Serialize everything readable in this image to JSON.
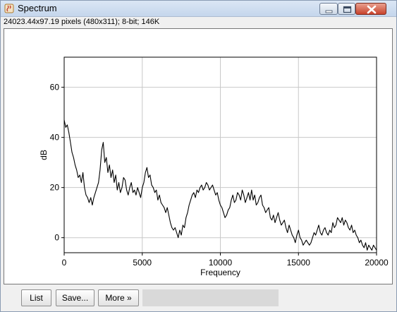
{
  "window": {
    "title": "Spectrum",
    "info": "24023.44x97.19 pixels (480x311); 8-bit; 146K"
  },
  "buttons": {
    "list": "List",
    "save": "Save...",
    "more": "More »"
  },
  "chart_data": {
    "type": "line",
    "xlabel": "Frequency",
    "ylabel": "dB",
    "xlim": [
      0,
      20000
    ],
    "ylim": [
      -6,
      72
    ],
    "x_ticks": [
      0,
      5000,
      10000,
      15000,
      20000
    ],
    "y_ticks": [
      0,
      20,
      40,
      60
    ],
    "grid": true,
    "line_color": "#000000",
    "series": [
      {
        "x": [
          0,
          100,
          200,
          300,
          400,
          500,
          600,
          700,
          800,
          900,
          1000,
          1100,
          1200,
          1300,
          1400,
          1500,
          1600,
          1700,
          1800,
          1900,
          2000,
          2100,
          2200,
          2300,
          2400,
          2500,
          2600,
          2700,
          2800,
          2900,
          3000,
          3100,
          3200,
          3300,
          3400,
          3500,
          3600,
          3700,
          3800,
          3900,
          4000,
          4100,
          4200,
          4300,
          4400,
          4500,
          4600,
          4700,
          4800,
          4900,
          5000,
          5100,
          5200,
          5300,
          5400,
          5500,
          5600,
          5700,
          5800,
          5900,
          6000,
          6100,
          6200,
          6300,
          6400,
          6500,
          6600,
          6700,
          6800,
          6900,
          7000,
          7100,
          7200,
          7300,
          7400,
          7500,
          7600,
          7700,
          7800,
          7900,
          8000,
          8100,
          8200,
          8300,
          8400,
          8500,
          8600,
          8700,
          8800,
          8900,
          9000,
          9100,
          9200,
          9300,
          9400,
          9500,
          9600,
          9700,
          9800,
          9900,
          10000,
          10100,
          10200,
          10300,
          10400,
          10500,
          10600,
          10700,
          10800,
          10900,
          11000,
          11100,
          11200,
          11300,
          11400,
          11500,
          11600,
          11700,
          11800,
          11900,
          12000,
          12100,
          12200,
          12300,
          12400,
          12500,
          12600,
          12700,
          12800,
          12900,
          13000,
          13100,
          13200,
          13300,
          13400,
          13500,
          13600,
          13700,
          13800,
          13900,
          14000,
          14100,
          14200,
          14300,
          14400,
          14500,
          14600,
          14700,
          14800,
          14900,
          15000,
          15100,
          15200,
          15300,
          15400,
          15500,
          15600,
          15700,
          15800,
          15900,
          16000,
          16100,
          16200,
          16300,
          16400,
          16500,
          16600,
          16700,
          16800,
          16900,
          17000,
          17100,
          17200,
          17300,
          17400,
          17500,
          17600,
          17700,
          17800,
          17900,
          18000,
          18100,
          18200,
          18300,
          18400,
          18500,
          18600,
          18700,
          18800,
          18900,
          19000,
          19100,
          19200,
          19300,
          19400,
          19500,
          19600,
          19700,
          19800,
          19900,
          20000
        ],
        "y": [
          47,
          44,
          45,
          42,
          38,
          34,
          32,
          29,
          27,
          24,
          25,
          22,
          26,
          20,
          17,
          16,
          14,
          16,
          13,
          16,
          18,
          20,
          22,
          27,
          35,
          38,
          30,
          32,
          26,
          29,
          24,
          27,
          22,
          25,
          19,
          22,
          18,
          20,
          24,
          23,
          19,
          17,
          20,
          22,
          18,
          19,
          17,
          20,
          18,
          16,
          20,
          22,
          26,
          28,
          24,
          25,
          21,
          20,
          18,
          19,
          15,
          17,
          14,
          13,
          12,
          10,
          12,
          9,
          6,
          4,
          3,
          4,
          2,
          0,
          3,
          1,
          5,
          4,
          8,
          10,
          13,
          15,
          17,
          18,
          16,
          19,
          18,
          20,
          21,
          19,
          20,
          22,
          21,
          19,
          20,
          21,
          19,
          17,
          18,
          15,
          13,
          12,
          10,
          8,
          9,
          11,
          12,
          15,
          17,
          14,
          15,
          18,
          17,
          15,
          19,
          17,
          14,
          16,
          18,
          15,
          19,
          15,
          17,
          13,
          14,
          16,
          17,
          13,
          12,
          10,
          11,
          12,
          8,
          7,
          9,
          6,
          8,
          10,
          7,
          5,
          6,
          7,
          4,
          2,
          5,
          3,
          1,
          0,
          -2,
          1,
          3,
          0,
          -1,
          -3,
          -2,
          -1,
          -2,
          -3,
          -2,
          0,
          2,
          1,
          3,
          5,
          2,
          1,
          3,
          4,
          2,
          1,
          3,
          2,
          6,
          4,
          5,
          8,
          7,
          6,
          8,
          5,
          7,
          6,
          4,
          3,
          5,
          2,
          3,
          1,
          0,
          -2,
          -1,
          -3,
          -4,
          -2,
          -5,
          -3,
          -4,
          -5,
          -3,
          -4,
          -5
        ]
      }
    ]
  }
}
